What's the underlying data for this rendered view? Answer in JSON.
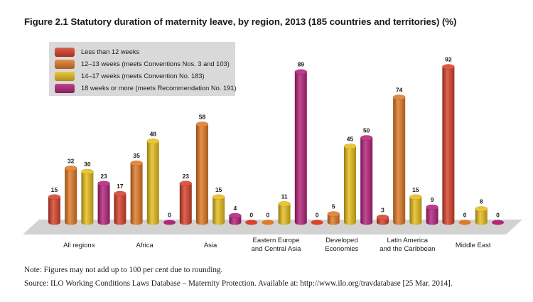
{
  "figure": {
    "title": "Figure 2.1  Statutory duration of maternity leave, by region, 2013 (185 countries and territories) (%)",
    "note": "Note: Figures may not add up to 100 per cent due to rounding.",
    "source": "Source: ILO Working Conditions Laws Database – Maternity Protection. Available at: http://www.ilo.org/travdatabase [25 Mar. 2014]."
  },
  "chart_data": {
    "type": "bar",
    "style": "3d-cylinder",
    "title": "Statutory duration of maternity leave, by region, 2013 (185 countries and territories) (%)",
    "categories": [
      "All regions",
      "Africa",
      "Asia",
      "Eastern Europe\nand Central Asia",
      "Developed\nEconomies",
      "Latin America\nand the Caribbean",
      "Middle East"
    ],
    "series": [
      {
        "name": "Less than 12 weeks",
        "color": "#d8422b",
        "values": [
          15,
          17,
          23,
          0,
          0,
          3,
          92
        ]
      },
      {
        "name": "12–13 weeks (meets Conventions Nos. 3 and 103)",
        "color": "#e07a26",
        "values": [
          32,
          35,
          58,
          0,
          5,
          74,
          0
        ]
      },
      {
        "name": "14–17 weeks (meets Convention No. 183)",
        "color": "#e7bd1c",
        "values": [
          30,
          48,
          15,
          11,
          45,
          15,
          8
        ]
      },
      {
        "name": "18 weeks or more (meets Recommendation No. 191)",
        "color": "#b3247b",
        "values": [
          23,
          0,
          4,
          89,
          50,
          9,
          0
        ]
      }
    ],
    "ylim": [
      0,
      100
    ],
    "xlabel": "",
    "ylabel": "%",
    "legend_position": "top-left"
  }
}
